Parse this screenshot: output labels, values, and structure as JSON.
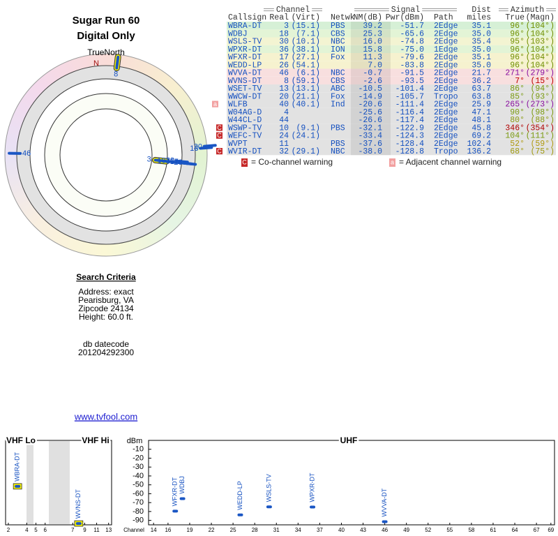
{
  "header": {
    "title": "Sugar Run 60",
    "subtitle": "Digital Only"
  },
  "polar": {
    "north": "TrueNorth",
    "n": "N",
    "markers": [
      {
        "label": "3",
        "azimuth": 96,
        "nm": 39.2,
        "highlight": true
      },
      {
        "label": "18",
        "azimuth": 96,
        "nm": 25.3
      },
      {
        "label": "30",
        "azimuth": 95,
        "nm": 16.0
      },
      {
        "label": "36",
        "azimuth": 96,
        "nm": 15.8
      },
      {
        "label": "17",
        "azimuth": 96,
        "nm": 11.3
      },
      {
        "label": "26",
        "azimuth": 96,
        "nm": 7.0
      },
      {
        "label": "46",
        "azimuth": 271,
        "nm": -0.7
      },
      {
        "label": "8",
        "azimuth": 7,
        "nm": -2.6,
        "highlight": true
      },
      {
        "label": "13",
        "azimuth": 86,
        "nm": -10.5
      },
      {
        "label": "20",
        "azimuth": 85,
        "nm": -14.9
      }
    ]
  },
  "search": {
    "title": "Search Criteria",
    "lines": [
      "Address: exact",
      "Pearisburg, VA",
      "Zipcode 24134",
      "Height: 60.0 ft."
    ],
    "datecode_label": "db datecode",
    "datecode": "201204292300"
  },
  "link": "www.tvfool.com",
  "table": {
    "groups": [
      "Channel",
      "Signal",
      "Azimuth"
    ],
    "dist": "Dist",
    "columns": [
      "Callsign",
      "Real",
      "(Virt)",
      "Netwk",
      "NM(dB)",
      "Pwr(dBm)",
      "Path",
      "miles",
      "True",
      "(Magn)"
    ],
    "rows": [
      {
        "callsign": "WBRA-DT",
        "real": 3,
        "virt": "(15.1)",
        "network": "PBS",
        "nm": 39.2,
        "pwr": -51.7,
        "path": "2Edge",
        "miles": 35.1,
        "true": {
          "value": 96,
          "label": "96°"
        },
        "magn": "(104°)",
        "color": "#d6f0d6",
        "az_color": "#6f8f00"
      },
      {
        "callsign": "WDBJ",
        "real": 18,
        "virt": "(7.1)",
        "network": "CBS",
        "nm": 25.3,
        "pwr": -65.6,
        "path": "2Edge",
        "miles": {
          "value": 35.0,
          "label": "35.0"
        },
        "true": {
          "value": 96,
          "label": "96°"
        },
        "magn": "(104°)",
        "color": "#e3f4d6",
        "az_color": "#6f8f00"
      },
      {
        "callsign": "WSLS-TV",
        "real": 30,
        "virt": "(10.1)",
        "network": "NBC",
        "nm": {
          "value": 16.0,
          "label": "16.0"
        },
        "pwr": -74.8,
        "path": "2Edge",
        "miles": 35.4,
        "true": {
          "value": 95,
          "label": "95°"
        },
        "magn": "(103°)",
        "color": "#f3f4d2",
        "az_color": "#6f8f00"
      },
      {
        "callsign": "WPXR-DT",
        "real": 36,
        "virt": "(38.1)",
        "network": "ION",
        "nm": 15.8,
        "pwr": {
          "value": -75.0,
          "label": "-75.0"
        },
        "path": "1Edge",
        "miles": {
          "value": 35.0,
          "label": "35.0"
        },
        "true": {
          "value": 96,
          "label": "96°"
        },
        "magn": "(104°)",
        "color": "#e3f4d6",
        "az_color": "#6f8f00"
      },
      {
        "callsign": "WFXR-DT",
        "real": 17,
        "virt": "(27.1)",
        "network": "Fox",
        "nm": 11.3,
        "pwr": -79.6,
        "path": "2Edge",
        "miles": 35.1,
        "true": {
          "value": 96,
          "label": "96°"
        },
        "magn": "(104°)",
        "color": "#f6f2cf",
        "az_color": "#6f8f00"
      },
      {
        "callsign": "WEDD-LP",
        "real": 26,
        "virt": "(54.1)",
        "nm": {
          "value": 7.0,
          "label": "7.0"
        },
        "pwr": -83.8,
        "path": "2Edge",
        "miles": {
          "value": 35.0,
          "label": "35.0"
        },
        "true": {
          "value": 96,
          "label": "96°"
        },
        "magn": "(104°)",
        "color": "#f6f2cf",
        "az_color": "#6f8f00"
      },
      {
        "callsign": "WVVA-DT",
        "real": 46,
        "virt": "(6.1)",
        "network": "NBC",
        "nm": -0.7,
        "pwr": -91.5,
        "path": "2Edge",
        "miles": 21.7,
        "true": {
          "value": 271,
          "label": "271°"
        },
        "magn": "(279°)",
        "color": "#f8dfdf",
        "az_color": "#8a10a0"
      },
      {
        "callsign": "WVNS-DT",
        "real": 8,
        "virt": "(59.1)",
        "network": "CBS",
        "nm": -2.6,
        "pwr": -93.5,
        "path": "2Edge",
        "miles": 36.2,
        "true": {
          "value": 7,
          "label": "7°"
        },
        "magn": "(15°)",
        "color": "#f8dfdf",
        "az_color": "#c00000"
      },
      {
        "callsign": "WSET-TV",
        "real": 13,
        "virt": "(13.1)",
        "network": "ABC",
        "nm": -10.5,
        "pwr": -101.4,
        "path": "2Edge",
        "miles": 63.7,
        "true": {
          "value": 86,
          "label": "86°"
        },
        "magn": "(94°)",
        "color": "#e2e2e2",
        "az_color": "#7a9a10"
      },
      {
        "callsign": "WWCW-DT",
        "real": 20,
        "virt": "(21.1)",
        "network": "Fox",
        "nm": -14.9,
        "pwr": -105.7,
        "path": "Tropo",
        "miles": 63.8,
        "true": {
          "value": 85,
          "label": "85°"
        },
        "magn": "(93°)",
        "color": "#e2e2e2",
        "az_color": "#7a9a10"
      },
      {
        "callsign": "WLFB",
        "real": 40,
        "virt": "(40.1)",
        "network": "Ind",
        "nm": -20.6,
        "pwr": -111.4,
        "path": "2Edge",
        "miles": 25.9,
        "true": {
          "value": 265,
          "label": "265°"
        },
        "magn": "(273°)",
        "color": "#e2e2e2",
        "az_color": "#8a10a0",
        "warning": "a"
      },
      {
        "callsign": "W04AG-D",
        "real": 4,
        "nm": -25.6,
        "pwr": -116.4,
        "path": "2Edge",
        "miles": 47.1,
        "true": {
          "value": 90,
          "label": "90°"
        },
        "magn": "(98°)",
        "color": "#e2e2e2",
        "az_color": "#7a9a10"
      },
      {
        "callsign": "W44CL-D",
        "real": 44,
        "nm": -26.6,
        "pwr": -117.4,
        "path": "2Edge",
        "miles": 48.1,
        "true": {
          "value": 80,
          "label": "80°"
        },
        "magn": "(88°)",
        "color": "#e2e2e2",
        "az_color": "#8a9a10"
      },
      {
        "callsign": "WSWP-TV",
        "real": 10,
        "virt": "(9.1)",
        "network": "PBS",
        "nm": -32.1,
        "pwr": -122.9,
        "path": "2Edge",
        "miles": 45.8,
        "true": {
          "value": 346,
          "label": "346°"
        },
        "magn": "(354°)",
        "color": "#e2e2e2",
        "az_color": "#b00000",
        "warning": "C"
      },
      {
        "callsign": "WEFC-TV",
        "real": 24,
        "virt": "(24.1)",
        "nm": -33.4,
        "pwr": -124.3,
        "path": "2Edge",
        "miles": 69.2,
        "true": {
          "value": 104,
          "label": "104°"
        },
        "magn": "(111°)",
        "color": "#e2e2e2",
        "az_color": "#7a9a10",
        "warning": "C"
      },
      {
        "callsign": "WVPT",
        "real": 11,
        "network": "PBS",
        "nm": -37.6,
        "pwr": -128.4,
        "path": "2Edge",
        "miles": 102.4,
        "true": {
          "value": 52,
          "label": "52°"
        },
        "magn": "(59°)",
        "color": "#e2e2e2",
        "az_color": "#b09a10"
      },
      {
        "callsign": "WVIR-DT",
        "real": 32,
        "virt": "(29.1)",
        "network": "NBC",
        "nm": {
          "value": -38.0,
          "label": "-38.0"
        },
        "pwr": -128.8,
        "path": "Tropo",
        "miles": 136.2,
        "true": {
          "value": 68,
          "label": "68°"
        },
        "magn": "(75°)",
        "color": "#e2e2e2",
        "az_color": "#a09a10",
        "warning": "C"
      }
    ]
  },
  "legend": [
    {
      "badge": "C",
      "text": "= Co-channel warning",
      "color": "#c62828"
    },
    {
      "badge": "a",
      "text": "= Adjacent channel warning",
      "color": "#f2a0a0"
    }
  ],
  "spectrum": {
    "ylabel": "dBm",
    "xlabel": "Channel",
    "ylim": [
      0,
      -95
    ],
    "yticks": [
      -10,
      -20,
      -30,
      -40,
      -50,
      -60,
      -70,
      -80,
      -90
    ],
    "bands": [
      {
        "title": "VHF Lo",
        "xlim": [
          1.7,
          6.4
        ],
        "xticks": [
          2,
          4,
          5,
          6
        ]
      },
      {
        "title": "VHF Hi",
        "xlim": [
          6.5,
          13.5
        ],
        "xticks": [
          7,
          9,
          11,
          13
        ]
      },
      {
        "title": "UHF",
        "xlim": [
          13.5,
          69.5
        ],
        "xticks": [
          14,
          16,
          19,
          22,
          25,
          28,
          31,
          34,
          37,
          40,
          43,
          46,
          49,
          52,
          55,
          58,
          61,
          64,
          67,
          69
        ]
      }
    ],
    "stations": [
      {
        "callsign": "WBRA-DT",
        "channel": 3,
        "pwr": -51.7,
        "highlight": true
      },
      {
        "callsign": "WVNS-DT",
        "channel": 8,
        "pwr": -93.5,
        "highlight": true
      },
      {
        "callsign": "WFXR-DT",
        "channel": 17,
        "pwr": -79.6
      },
      {
        "callsign": "WDBJ",
        "channel": 18,
        "pwr": -65.6
      },
      {
        "callsign": "WEDD-LP",
        "channel": 26,
        "pwr": -83.8
      },
      {
        "callsign": "WSLS-TV",
        "channel": 30,
        "pwr": -74.8
      },
      {
        "callsign": "WPXR-DT",
        "channel": 36,
        "pwr": -75
      },
      {
        "callsign": "WVVA-DT",
        "channel": 46,
        "pwr": -91.5
      }
    ]
  }
}
